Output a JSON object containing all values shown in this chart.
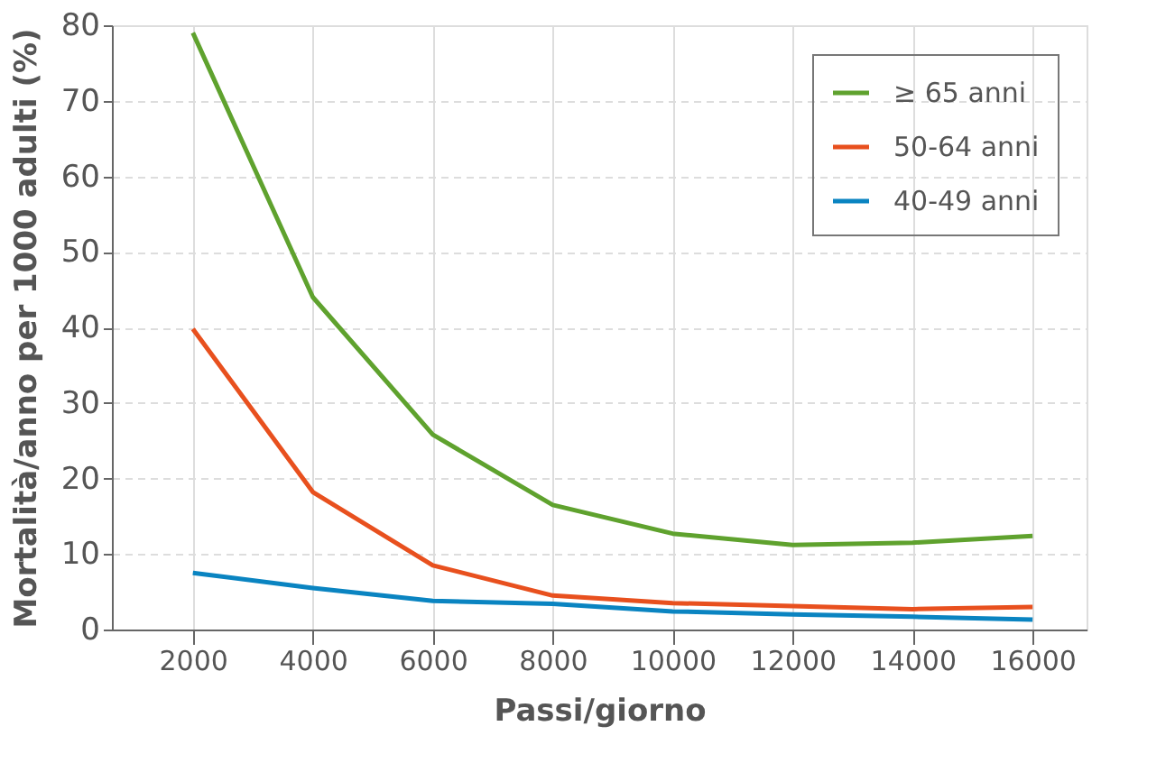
{
  "chart_data": {
    "type": "line",
    "xlabel": "Passi/giorno",
    "ylabel": "Mortalità/anno per 1000 adulti (%)",
    "x": [
      2000,
      4000,
      6000,
      8000,
      10000,
      12000,
      14000,
      16000
    ],
    "series": [
      {
        "name": "≥ 65 anni",
        "color": "#5fa22e",
        "values": [
          79,
          44,
          25.8,
          16.5,
          12.7,
          11.2,
          11.5,
          12.4
        ]
      },
      {
        "name": "50-64 anni",
        "color": "#e8501e",
        "values": [
          39.8,
          18.2,
          8.5,
          4.5,
          3.5,
          3.1,
          2.7,
          3.0
        ]
      },
      {
        "name": "40-49 anni",
        "color": "#0a84c1",
        "values": [
          7.5,
          5.5,
          3.8,
          3.4,
          2.4,
          2.0,
          1.7,
          1.3
        ]
      }
    ],
    "xlim": [
      650,
      16900
    ],
    "xticks": [
      2000,
      4000,
      6000,
      8000,
      10000,
      12000,
      14000,
      16000
    ],
    "ylim": [
      0,
      80
    ],
    "yticks": [
      0,
      10,
      20,
      30,
      40,
      50,
      60,
      70,
      80
    ],
    "grid": true,
    "legend": "top right",
    "marker": "none",
    "line_style": "solid"
  }
}
